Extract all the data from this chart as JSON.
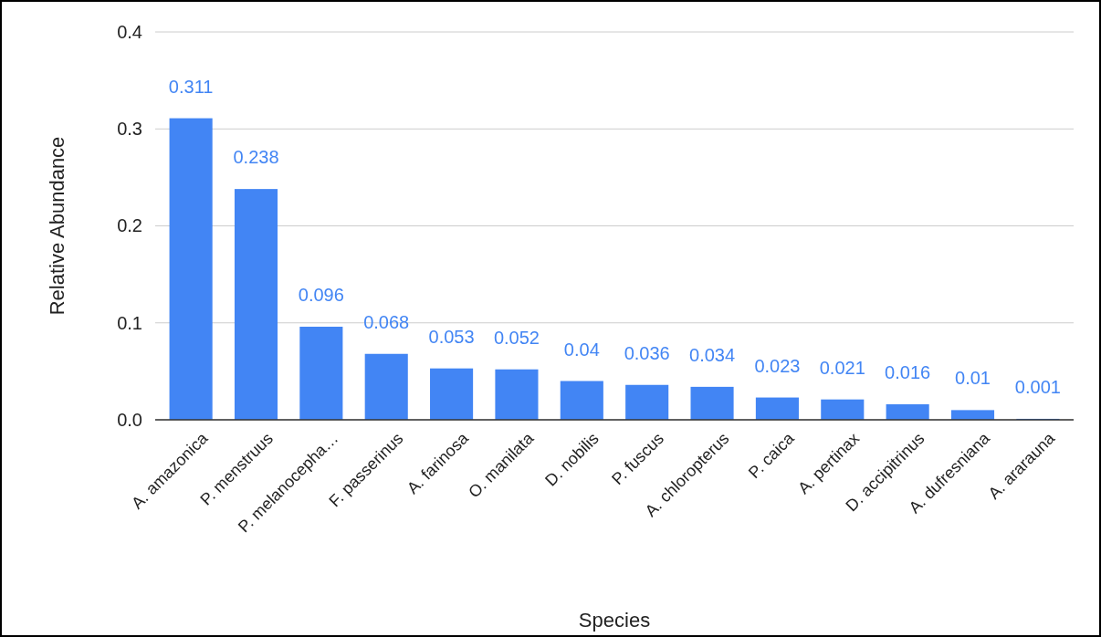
{
  "chart_data": {
    "type": "bar",
    "categories": [
      "A. amazonica",
      "P. menstruus",
      "P. melanocepha…",
      "F. passerinus",
      "A. farinosa",
      "O. manilata",
      "D. nobilis",
      "P. fuscus",
      "A. chloropterus",
      "P. caica",
      "A. pertinax",
      "D. accipitrinus",
      "A. dufresniana",
      "A. ararauna"
    ],
    "values": [
      0.311,
      0.238,
      0.096,
      0.068,
      0.053,
      0.052,
      0.04,
      0.036,
      0.034,
      0.023,
      0.021,
      0.016,
      0.01,
      0.001
    ],
    "color": "#4285f4",
    "xlabel": "Species",
    "ylabel": "Relative Abundance",
    "ylim": [
      0,
      0.4
    ],
    "yticks": [
      {
        "value": 0,
        "label": "0.0"
      },
      0.1,
      0.2,
      0.3,
      0.4
    ],
    "grid": "y",
    "data_labels": true
  }
}
